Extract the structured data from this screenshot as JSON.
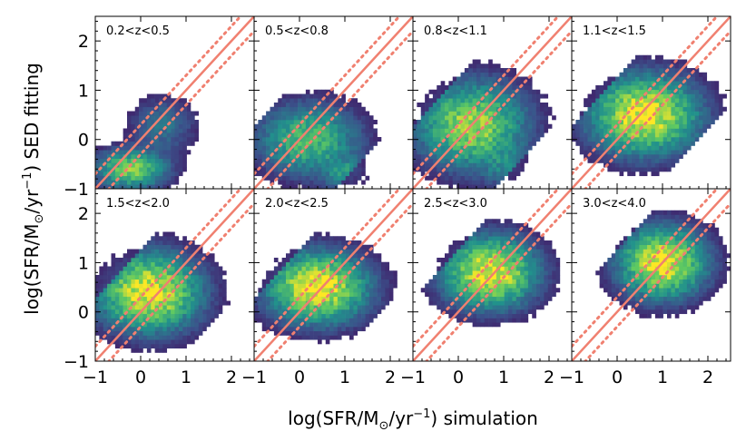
{
  "chart_data": {
    "type": "heatmap",
    "xlabel": "log(SFR/M",
    "xlabel_sub": "⊙",
    "xlabel_tail": "/yr",
    "xlabel_sup": "−1",
    "xlabel_end": ") simulation",
    "ylabel": "log(SFR/M",
    "ylabel_sub": "⊙",
    "ylabel_tail": "/yr",
    "ylabel_sup": "−1",
    "ylabel_end": ") SED fitting",
    "xlim": [
      -1,
      2.5
    ],
    "ylim": [
      -1,
      2.5
    ],
    "xticks": [
      -1,
      0,
      1,
      2
    ],
    "xtick_labels": [
      "−1",
      "0",
      "1",
      "2"
    ],
    "yticks": [
      -1,
      0,
      1,
      2
    ],
    "ytick_labels": [
      "−1",
      "0",
      "1",
      "2"
    ],
    "line_color": "#f08070",
    "dotted_color": "#f08070",
    "one_to_one": {
      "slope": 1,
      "intercept": 0
    },
    "dotted_offsets": [
      0.3,
      -0.3
    ],
    "colormap": [
      "#440154",
      "#3b528b",
      "#21918c",
      "#5ec962",
      "#fde725"
    ],
    "panels": [
      {
        "label": "0.2<z<0.5",
        "clusters": [
          {
            "x": -0.2,
            "y": -0.6,
            "sx": 0.5,
            "sy": 0.25,
            "w": 0.7
          },
          {
            "x": 0.5,
            "y": 0.3,
            "sx": 0.45,
            "sy": 0.35,
            "w": 0.25
          }
        ]
      },
      {
        "label": "0.5<z<0.8",
        "clusters": [
          {
            "x": 0.2,
            "y": 0.0,
            "sx": 0.7,
            "sy": 0.45,
            "w": 0.6
          },
          {
            "x": 1.1,
            "y": -0.7,
            "sx": 0.35,
            "sy": 0.2,
            "w": 0.35
          }
        ]
      },
      {
        "label": "0.8<z<1.1",
        "clusters": [
          {
            "x": 0.3,
            "y": 0.3,
            "sx": 0.75,
            "sy": 0.55,
            "w": 0.8
          },
          {
            "x": 1.1,
            "y": -0.6,
            "sx": 0.35,
            "sy": 0.25,
            "w": 0.2
          }
        ]
      },
      {
        "label": "1.1<z<1.5",
        "clusters": [
          {
            "x": 0.6,
            "y": 0.5,
            "sx": 0.75,
            "sy": 0.5,
            "w": 1.0
          }
        ]
      },
      {
        "label": "1.5<z<2.0",
        "clusters": [
          {
            "x": 0.2,
            "y": 0.4,
            "sx": 0.7,
            "sy": 0.5,
            "w": 1.0
          }
        ]
      },
      {
        "label": "2.0<z<2.5",
        "clusters": [
          {
            "x": 0.4,
            "y": 0.5,
            "sx": 0.7,
            "sy": 0.45,
            "w": 1.0
          }
        ]
      },
      {
        "label": "2.5<z<3.0",
        "clusters": [
          {
            "x": 0.7,
            "y": 0.8,
            "sx": 0.65,
            "sy": 0.45,
            "w": 1.0
          }
        ]
      },
      {
        "label": "3.0<z<4.0",
        "clusters": [
          {
            "x": 1.0,
            "y": 1.0,
            "sx": 0.6,
            "sy": 0.45,
            "w": 1.0
          }
        ]
      }
    ]
  }
}
